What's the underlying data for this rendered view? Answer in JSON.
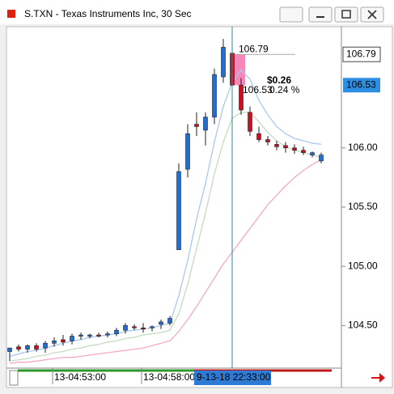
{
  "window": {
    "title": "S.TXN - Texas Instruments Inc, 30 Sec"
  },
  "chart_data": {
    "type": "candlestick",
    "categories": [
      null,
      null,
      null,
      null,
      null,
      "13-04:53:00",
      null,
      null,
      null,
      null,
      null,
      null,
      null,
      null,
      null,
      "13-04:58:00",
      null,
      null,
      null,
      null,
      null,
      null,
      null,
      null,
      null,
      null,
      null,
      null,
      null,
      null,
      null,
      null,
      null,
      null,
      null,
      null
    ],
    "open": [
      104.28,
      104.32,
      104.3,
      104.33,
      104.31,
      104.35,
      104.38,
      104.37,
      104.41,
      104.41,
      104.42,
      104.42,
      104.43,
      104.46,
      104.49,
      104.48,
      104.48,
      104.51,
      104.52,
      105.14,
      105.82,
      106.2,
      106.15,
      106.26,
      106.6,
      106.8,
      106.53,
      106.3,
      106.12,
      106.07,
      106.03,
      106.02,
      106.0,
      105.98,
      105.94,
      105.89
    ],
    "high": [
      104.31,
      104.34,
      104.34,
      104.35,
      104.37,
      104.4,
      104.42,
      104.43,
      104.44,
      104.43,
      104.44,
      104.45,
      104.48,
      104.52,
      104.51,
      104.52,
      104.5,
      104.55,
      104.58,
      105.87,
      106.2,
      106.3,
      106.3,
      106.67,
      106.92,
      106.98,
      106.59,
      106.35,
      106.18,
      106.1,
      106.06,
      106.05,
      106.03,
      106.01,
      105.97,
      105.96
    ],
    "low": [
      104.2,
      104.28,
      104.27,
      104.28,
      104.27,
      104.32,
      104.33,
      104.34,
      104.38,
      104.39,
      104.4,
      104.4,
      104.41,
      104.43,
      104.46,
      104.44,
      104.45,
      104.47,
      104.5,
      105.14,
      105.75,
      106.1,
      106.02,
      106.2,
      106.55,
      106.53,
      106.28,
      106.1,
      106.05,
      106.02,
      105.98,
      105.96,
      105.95,
      105.94,
      105.92,
      105.87
    ],
    "close": [
      104.31,
      104.3,
      104.33,
      104.3,
      104.35,
      104.37,
      104.36,
      104.41,
      104.42,
      104.42,
      104.41,
      104.43,
      104.46,
      104.5,
      104.48,
      104.47,
      104.49,
      104.53,
      104.56,
      105.8,
      106.12,
      106.18,
      106.26,
      106.62,
      106.85,
      106.53,
      106.32,
      106.14,
      106.07,
      106.05,
      106.01,
      106.0,
      105.98,
      105.96,
      105.96,
      105.94
    ],
    "up_color": "#1f6fd6",
    "down_color": "#cc1020",
    "series": [
      {
        "color": "#a9c8ec",
        "values": [
          104.24,
          104.26,
          104.28,
          104.29,
          104.31,
          104.33,
          104.35,
          104.37,
          104.38,
          104.4,
          104.41,
          104.42,
          104.43,
          104.45,
          104.46,
          104.47,
          104.48,
          104.5,
          104.52,
          104.75,
          105.05,
          105.4,
          105.7,
          106.05,
          106.35,
          106.55,
          106.66,
          106.58,
          106.4,
          106.28,
          106.18,
          106.12,
          106.08,
          106.06,
          106.04,
          106.03
        ]
      },
      {
        "color": "#c4dcc0",
        "values": [
          104.2,
          104.21,
          104.22,
          104.24,
          104.25,
          104.27,
          104.28,
          104.3,
          104.31,
          104.33,
          104.34,
          104.36,
          104.37,
          104.39,
          104.4,
          104.42,
          104.43,
          104.44,
          104.46,
          104.6,
          104.85,
          105.15,
          105.45,
          105.78,
          106.05,
          106.25,
          106.3,
          106.3,
          106.22,
          106.13,
          106.06,
          106.01,
          105.98,
          105.96,
          105.94,
          105.92
        ]
      },
      {
        "color": "#f5a8c8",
        "values": [
          104.18,
          104.19,
          104.19,
          104.2,
          104.21,
          104.22,
          104.23,
          104.23,
          104.24,
          104.25,
          104.26,
          104.27,
          104.28,
          104.29,
          104.3,
          104.31,
          104.33,
          104.35,
          104.37,
          104.45,
          104.55,
          104.66,
          104.78,
          104.9,
          105.02,
          105.12,
          105.22,
          105.32,
          105.42,
          105.52,
          105.6,
          105.68,
          105.75,
          105.81,
          105.86,
          105.9
        ]
      }
    ],
    "ylim": [
      104.14,
      107.01
    ],
    "yticks": [
      {
        "value": 104.5,
        "label": "104.50"
      },
      {
        "value": 105,
        "label": "105.00"
      },
      {
        "value": 105.5,
        "label": "105.50"
      },
      {
        "value": 106,
        "label": "106.00"
      }
    ],
    "marker_price": 106.79,
    "last_price": 106.53,
    "cursor_label": "9-13-18 22:33:00",
    "measure": {
      "start": 106.79,
      "end": 106.53,
      "change_label": "$0.26",
      "percent_label": "0.24 %"
    }
  }
}
